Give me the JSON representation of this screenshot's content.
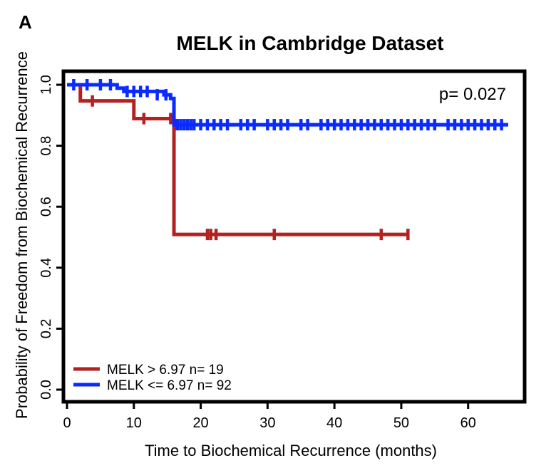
{
  "panel_label": "A",
  "chart_data": {
    "type": "line",
    "subtype": "kaplan-meier",
    "title": "MELK in Cambridge Dataset",
    "xlabel": "Time to Biochemical Recurrence (months)",
    "ylabel": "Probability of Freedom from Biochemical Recurrence",
    "xlim": [
      0,
      66
    ],
    "ylim": [
      0,
      1.0
    ],
    "x_ticks": [
      "0",
      "10",
      "20",
      "30",
      "40",
      "50",
      "60"
    ],
    "y_ticks": [
      "0.0",
      "0.2",
      "0.4",
      "0.6",
      "0.8",
      "1.0"
    ],
    "annotation": "p= 0.027",
    "grid": false,
    "legend_position": "bottom-left",
    "series": [
      {
        "name": "MELK > 6.97 n= 19",
        "color": "#B22222",
        "steps": [
          [
            0,
            1.0
          ],
          [
            2,
            0.947
          ],
          [
            10,
            0.889
          ],
          [
            16,
            0.509
          ],
          [
            51,
            0.509
          ]
        ],
        "censored": [
          [
            3.8,
            0.947
          ],
          [
            11.5,
            0.889
          ],
          [
            15.5,
            0.889
          ],
          [
            21,
            0.509
          ],
          [
            21.5,
            0.509
          ],
          [
            22.3,
            0.509
          ],
          [
            31,
            0.509
          ],
          [
            47,
            0.509
          ],
          [
            51,
            0.509
          ]
        ]
      },
      {
        "name": "MELK <= 6.97 n= 92",
        "color": "#0A2BFF",
        "steps": [
          [
            0,
            1.0
          ],
          [
            7.5,
            0.989
          ],
          [
            8.5,
            0.978
          ],
          [
            14.5,
            0.967
          ],
          [
            15.5,
            0.955
          ],
          [
            16,
            0.869
          ],
          [
            66,
            0.869
          ]
        ],
        "censored": [
          [
            1,
            1.0
          ],
          [
            3,
            1.0
          ],
          [
            5,
            1.0
          ],
          [
            6.5,
            1.0
          ],
          [
            9,
            0.978
          ],
          [
            10,
            0.978
          ],
          [
            11,
            0.978
          ],
          [
            12,
            0.978
          ],
          [
            13.5,
            0.967
          ],
          [
            14.8,
            0.967
          ],
          [
            16.5,
            0.869
          ],
          [
            17,
            0.869
          ],
          [
            17.5,
            0.869
          ],
          [
            18,
            0.869
          ],
          [
            18.5,
            0.869
          ],
          [
            19,
            0.869
          ],
          [
            20,
            0.869
          ],
          [
            21,
            0.869
          ],
          [
            22,
            0.869
          ],
          [
            23,
            0.869
          ],
          [
            24,
            0.869
          ],
          [
            26,
            0.869
          ],
          [
            27,
            0.869
          ],
          [
            28,
            0.869
          ],
          [
            30,
            0.869
          ],
          [
            31,
            0.869
          ],
          [
            32,
            0.869
          ],
          [
            33,
            0.869
          ],
          [
            35,
            0.869
          ],
          [
            36,
            0.869
          ],
          [
            38,
            0.869
          ],
          [
            39,
            0.869
          ],
          [
            40,
            0.869
          ],
          [
            41,
            0.869
          ],
          [
            42,
            0.869
          ],
          [
            43,
            0.869
          ],
          [
            44,
            0.869
          ],
          [
            45,
            0.869
          ],
          [
            46,
            0.869
          ],
          [
            47,
            0.869
          ],
          [
            48,
            0.869
          ],
          [
            49,
            0.869
          ],
          [
            50,
            0.869
          ],
          [
            51,
            0.869
          ],
          [
            52,
            0.869
          ],
          [
            53,
            0.869
          ],
          [
            54,
            0.869
          ],
          [
            55,
            0.869
          ],
          [
            57,
            0.869
          ],
          [
            58,
            0.869
          ],
          [
            59,
            0.869
          ],
          [
            60,
            0.869
          ],
          [
            61,
            0.869
          ],
          [
            62,
            0.869
          ],
          [
            63,
            0.869
          ],
          [
            64,
            0.869
          ],
          [
            65,
            0.869
          ]
        ]
      }
    ]
  }
}
